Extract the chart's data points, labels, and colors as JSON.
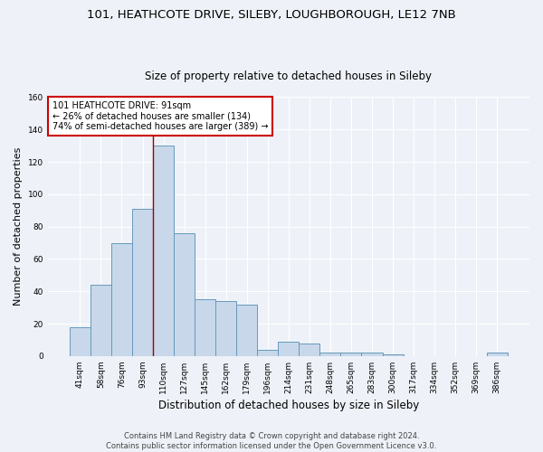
{
  "title_line1": "101, HEATHCOTE DRIVE, SILEBY, LOUGHBOROUGH, LE12 7NB",
  "title_line2": "Size of property relative to detached houses in Sileby",
  "xlabel": "Distribution of detached houses by size in Sileby",
  "ylabel": "Number of detached properties",
  "categories": [
    "41sqm",
    "58sqm",
    "76sqm",
    "93sqm",
    "110sqm",
    "127sqm",
    "145sqm",
    "162sqm",
    "179sqm",
    "196sqm",
    "214sqm",
    "231sqm",
    "248sqm",
    "265sqm",
    "283sqm",
    "300sqm",
    "317sqm",
    "334sqm",
    "352sqm",
    "369sqm",
    "386sqm"
  ],
  "values": [
    18,
    44,
    70,
    91,
    130,
    76,
    35,
    34,
    32,
    4,
    9,
    8,
    2,
    2,
    2,
    1,
    0,
    0,
    0,
    0,
    2
  ],
  "bar_color": "#c8d8ea",
  "bar_edge_color": "#6699bb",
  "vline_x": 3.5,
  "vline_color": "#990000",
  "ylim": [
    0,
    160
  ],
  "yticks": [
    0,
    20,
    40,
    60,
    80,
    100,
    120,
    140,
    160
  ],
  "annotation_box_text_line1": "101 HEATHCOTE DRIVE: 91sqm",
  "annotation_box_text_line2": "← 26% of detached houses are smaller (134)",
  "annotation_box_text_line3": "74% of semi-detached houses are larger (389) →",
  "footnote_line1": "Contains HM Land Registry data © Crown copyright and database right 2024.",
  "footnote_line2": "Contains public sector information licensed under the Open Government Licence v3.0.",
  "bg_color": "#eef2f8",
  "grid_color": "#ffffff",
  "title_fontsize": 9.5,
  "subtitle_fontsize": 8.5,
  "ylabel_fontsize": 8,
  "xlabel_fontsize": 8.5,
  "tick_fontsize": 6.5,
  "annot_fontsize": 7,
  "footnote_fontsize": 6
}
